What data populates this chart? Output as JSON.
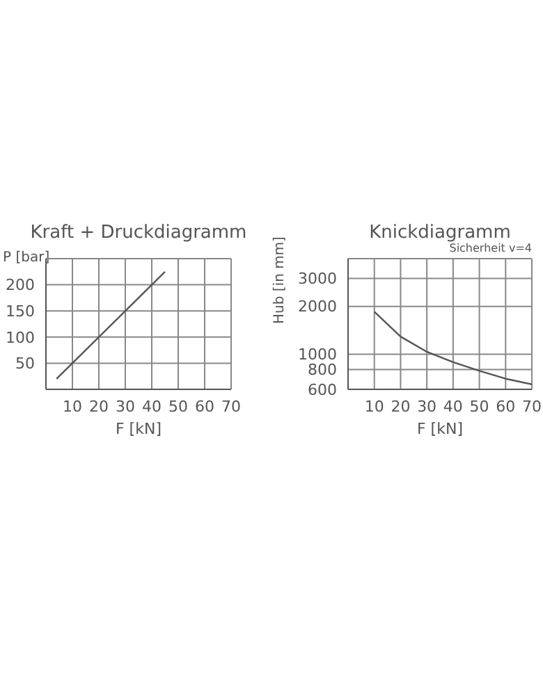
{
  "chart_data": [
    {
      "type": "line",
      "title": "Kraft + Druckdiagramm",
      "xlabel": "F [kN]",
      "ylabel": "P [bar]",
      "x": [
        4,
        45
      ],
      "series": [
        {
          "color": "#555555",
          "values": [
            20,
            225
          ]
        }
      ],
      "xlim": [
        0,
        70
      ],
      "xticks": [
        10,
        20,
        30,
        40,
        50,
        60,
        70
      ],
      "ylim": [
        0,
        250
      ],
      "yticks": [
        50,
        100,
        150,
        200
      ],
      "grid": true,
      "marker": "none"
    },
    {
      "type": "line",
      "title": "Knickdiagramm",
      "xlabel": "F [kN]",
      "ylabel": "Hub [in mm]",
      "annotations": [
        "Sicherheit v=4"
      ],
      "x": [
        10,
        20,
        30,
        40,
        50,
        60,
        70
      ],
      "series": [
        {
          "color": "#555555",
          "values": [
            1850,
            1290,
            1035,
            890,
            785,
            700,
            645
          ]
        }
      ],
      "xlim": [
        0,
        70
      ],
      "xticks": [
        10,
        20,
        30,
        40,
        50,
        60,
        70
      ],
      "ylim": [
        600,
        4000
      ],
      "yticks": [
        600,
        800,
        1000,
        2000,
        3000
      ],
      "log": true,
      "grid": true,
      "marker": "none"
    }
  ]
}
